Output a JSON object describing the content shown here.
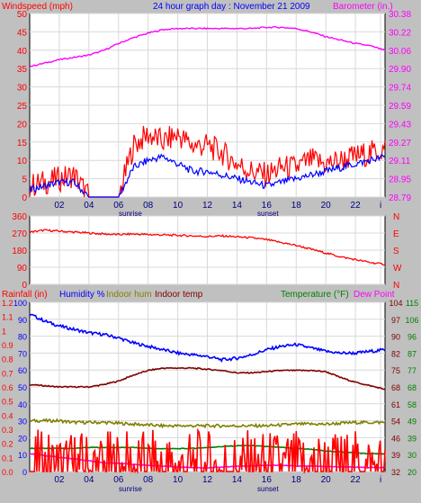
{
  "chart_data": [
    {
      "type": "line",
      "title": "24 hour graph day : November 21 2009",
      "y_left_label": "Windspeed (mph)",
      "y_right_label": "Barometer (in.)",
      "x_tick_labels": [
        "02",
        "04",
        "06",
        "08",
        "10",
        "12",
        "14",
        "16",
        "18",
        "20",
        "22",
        "i"
      ],
      "x_annotations": [
        "sunrise",
        "sunset"
      ],
      "y_left_ticks": [
        0,
        5,
        10,
        15,
        20,
        25,
        30,
        35,
        40,
        45,
        50
      ],
      "y_right_ticks": [
        "28.79",
        "28.95",
        "29.11",
        "29.27",
        "29.43",
        "29.59",
        "29.74",
        "29.90",
        "30.06",
        "30.22",
        "30.38"
      ],
      "y_left_range": [
        0,
        50
      ],
      "y_right_range": [
        28.79,
        30.38
      ],
      "x_hours": [
        0,
        1,
        2,
        3,
        4,
        5,
        6,
        7,
        8,
        9,
        10,
        11,
        12,
        13,
        14,
        15,
        16,
        17,
        18,
        19,
        20,
        21,
        22,
        23,
        24
      ],
      "series": [
        {
          "axis": "right",
          "color": "#ff00ff",
          "values": [
            29.92,
            29.95,
            29.98,
            30.0,
            30.02,
            30.06,
            30.12,
            30.17,
            30.21,
            30.24,
            30.25,
            30.25,
            30.25,
            30.25,
            30.25,
            30.25,
            30.26,
            30.26,
            30.25,
            30.22,
            30.18,
            30.15,
            30.12,
            30.1,
            30.06
          ]
        },
        {
          "color": "#ff0000",
          "values": [
            3,
            4,
            5,
            6,
            0,
            0,
            0,
            14,
            17,
            15,
            17,
            14,
            14,
            12,
            9,
            7,
            6,
            8,
            8,
            10,
            9,
            10,
            11,
            12,
            13
          ]
        },
        {
          "color": "#0000ff",
          "values": [
            2,
            3,
            4,
            4,
            0,
            0,
            0,
            8,
            10,
            11,
            9,
            7,
            7,
            6,
            5,
            4,
            3,
            4,
            5,
            6,
            7,
            8,
            9,
            10,
            11
          ]
        }
      ]
    },
    {
      "type": "line",
      "y_left_ticks": [
        0,
        90,
        180,
        270,
        360
      ],
      "y_left_range": [
        0,
        360
      ],
      "y_right_ticks": [
        "N",
        "W",
        "S",
        "E",
        "N"
      ],
      "x_hours": [
        0,
        1,
        2,
        3,
        4,
        5,
        6,
        7,
        8,
        9,
        10,
        11,
        12,
        13,
        14,
        15,
        16,
        17,
        18,
        19,
        20,
        21,
        22,
        23,
        24
      ],
      "series": [
        {
          "color": "#ff0000",
          "values": [
            275,
            285,
            280,
            275,
            270,
            265,
            262,
            265,
            262,
            260,
            258,
            255,
            252,
            255,
            250,
            245,
            235,
            220,
            205,
            185,
            165,
            145,
            130,
            115,
            105
          ]
        }
      ]
    },
    {
      "type": "line",
      "x_tick_labels": [
        "02",
        "04",
        "06",
        "08",
        "10",
        "12",
        "14",
        "16",
        "18",
        "20",
        "22",
        "i"
      ],
      "x_annotations": [
        "sunrise",
        "sunset"
      ],
      "legend": [
        {
          "text": "Rainfall (in)",
          "color": "#ff0000"
        },
        {
          "text": "Humidity %",
          "color": "#0000ff"
        },
        {
          "text": "Indoor hum",
          "color": "#808000"
        },
        {
          "text": "Indoor temp",
          "color": "#800000"
        },
        {
          "text": "Temperature (°F)",
          "color": "#008000"
        },
        {
          "text": "Dew Point",
          "color": "#ff00ff"
        }
      ],
      "y_rain_ticks": [
        "0.0",
        "0.1",
        "0.2",
        "0.3",
        "0.4",
        "0.5",
        "0.6",
        "0.7",
        "0.8",
        "0.9",
        "1",
        "1.1",
        "1.2"
      ],
      "y_rain_range": [
        0,
        1.2
      ],
      "y_humidity_ticks": [
        0,
        10,
        20,
        30,
        40,
        50,
        60,
        70,
        80,
        90,
        100
      ],
      "y_humidity_range": [
        0,
        100
      ],
      "y_indoor_temp_ticks": [
        32,
        39,
        46,
        54,
        61,
        68,
        75,
        82,
        90,
        97,
        104
      ],
      "y_indoor_temp_range": [
        32,
        104
      ],
      "y_temp_ticks": [
        20,
        30,
        39,
        49,
        58,
        68,
        77,
        87,
        96,
        106,
        115
      ],
      "y_temp_range": [
        20,
        115
      ],
      "x_hours": [
        0,
        1,
        2,
        3,
        4,
        5,
        6,
        7,
        8,
        9,
        10,
        11,
        12,
        13,
        14,
        15,
        16,
        17,
        18,
        19,
        20,
        21,
        22,
        23,
        24
      ],
      "series": [
        {
          "name": "Humidity %",
          "axis": "humidity",
          "color": "#0000ff",
          "values": [
            93,
            89,
            86,
            84,
            82,
            81,
            79,
            76,
            74,
            72,
            70,
            69,
            68,
            66,
            67,
            69,
            72,
            74,
            75,
            73,
            71,
            70,
            70,
            71,
            72
          ]
        },
        {
          "name": "Indoor temp",
          "axis": "indoor_temp",
          "color": "#800000",
          "values": [
            69,
            68.5,
            68,
            68,
            68,
            69,
            70.5,
            73,
            75,
            76,
            76,
            76,
            75.5,
            75,
            74,
            74,
            74.5,
            75,
            75,
            75,
            74.5,
            72,
            70,
            68.5,
            67
          ]
        },
        {
          "name": "Indoor hum",
          "axis": "humidity",
          "color": "#808000",
          "values": [
            30,
            30,
            30,
            29,
            29,
            29,
            28.5,
            28,
            27.5,
            27,
            27,
            27,
            27,
            27,
            27,
            27,
            27,
            27.5,
            28,
            28,
            28,
            28.5,
            29,
            29,
            29
          ]
        },
        {
          "name": "Temperature (°F)",
          "axis": "temp",
          "color": "#008000",
          "values": [
            33,
            33,
            33,
            33,
            33.5,
            33.5,
            33.5,
            33.5,
            33,
            32.8,
            32.8,
            33,
            33.5,
            34,
            34.5,
            34.5,
            34,
            33.5,
            33,
            32.5,
            31.5,
            31,
            30.5,
            30,
            30
          ]
        },
        {
          "name": "Dew Point",
          "axis": "temp",
          "color": "#ff00ff",
          "values": [
            30,
            29,
            28,
            27,
            26,
            25,
            24.5,
            24,
            23.5,
            23,
            22.5,
            22.2,
            22,
            22.5,
            23,
            23.2,
            23.5,
            23.5,
            23,
            23,
            22.8,
            22.6,
            22.4,
            22.2,
            22.3
          ]
        },
        {
          "name": "Rainfall (in)",
          "axis": "rain",
          "color": "#ff0000",
          "values": [
            0,
            0,
            0,
            0,
            0,
            0,
            0,
            0,
            0,
            0,
            0,
            0,
            0,
            0,
            0,
            0,
            0,
            0,
            0,
            0,
            0,
            0,
            0,
            0,
            0
          ]
        }
      ]
    }
  ]
}
